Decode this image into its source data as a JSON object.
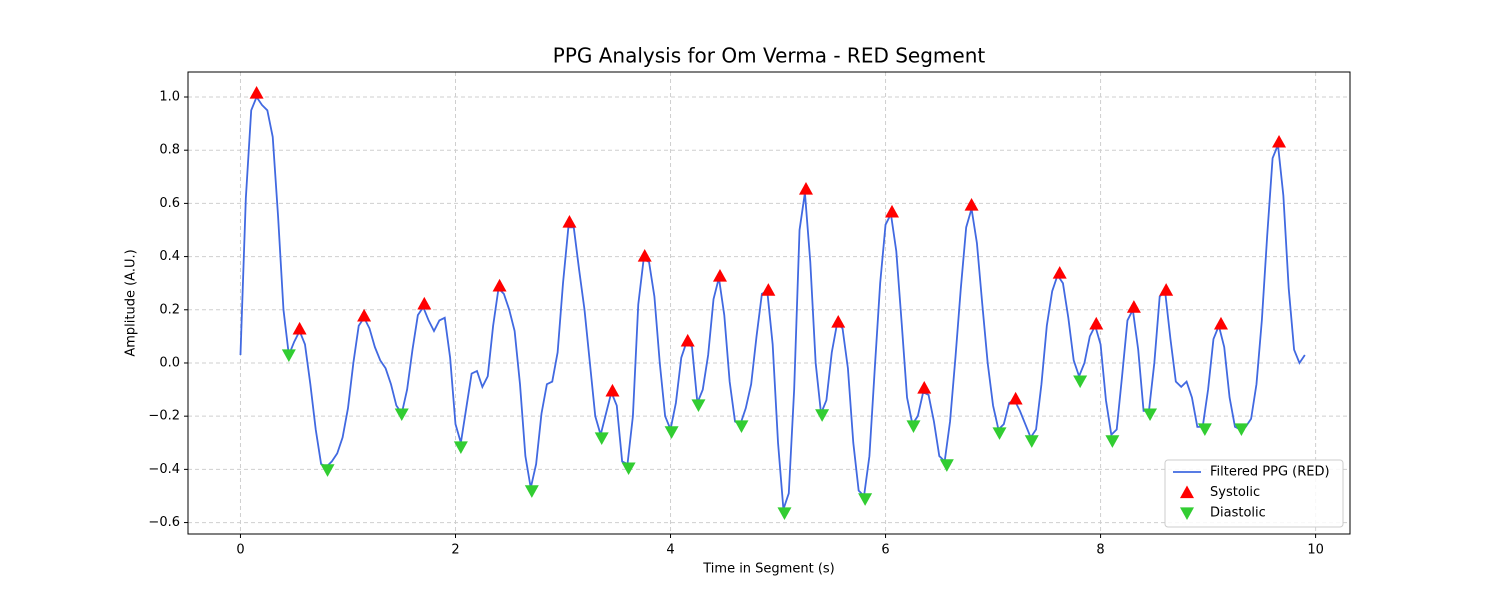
{
  "chart_data": {
    "type": "line",
    "title": "PPG Analysis for Om Verma - RED Segment",
    "xlabel": "Time in Segment (s)",
    "ylabel": "Amplitude (A.U.)",
    "xlim": [
      -0.488,
      10.32
    ],
    "ylim": [
      -0.643,
      1.094
    ],
    "xticks": [
      0,
      2,
      4,
      6,
      8,
      10
    ],
    "yticks": [
      {
        "value": -0.6,
        "label": "−0.6"
      },
      {
        "value": -0.4,
        "label": "−0.4"
      },
      {
        "value": -0.2,
        "label": "−0.2"
      },
      {
        "value": 0,
        "label": "0.0"
      },
      0.2,
      0.4,
      0.6,
      0.8,
      {
        "value": 1,
        "label": "1.0"
      }
    ],
    "grid": true,
    "legend": "lower right",
    "series": [
      {
        "name": "Filtered PPG (RED)",
        "type": "line",
        "color": "#4169e1",
        "x": [
          0,
          0.05,
          0.1,
          0.15,
          0.2,
          0.25,
          0.3,
          0.35,
          0.4,
          0.45,
          0.5,
          0.55,
          0.6,
          0.65,
          0.7,
          0.75,
          0.8,
          0.85,
          0.9,
          0.95,
          1.0,
          1.05,
          1.1,
          1.15,
          1.2,
          1.25,
          1.3,
          1.35,
          1.4,
          1.45,
          1.5,
          1.55,
          1.6,
          1.65,
          1.7,
          1.75,
          1.8,
          1.85,
          1.9,
          1.95,
          2.0,
          2.05,
          2.1,
          2.15,
          2.2,
          2.25,
          2.3,
          2.35,
          2.4,
          2.45,
          2.5,
          2.55,
          2.6,
          2.65,
          2.7,
          2.75,
          2.8,
          2.85,
          2.9,
          2.95,
          3.0,
          3.05,
          3.1,
          3.15,
          3.2,
          3.25,
          3.3,
          3.35,
          3.4,
          3.45,
          3.5,
          3.55,
          3.6,
          3.65,
          3.7,
          3.75,
          3.8,
          3.85,
          3.9,
          3.95,
          4.0,
          4.05,
          4.1,
          4.15,
          4.2,
          4.25,
          4.3,
          4.35,
          4.4,
          4.45,
          4.5,
          4.55,
          4.6,
          4.65,
          4.7,
          4.75,
          4.8,
          4.85,
          4.9,
          4.95,
          5.0,
          5.05,
          5.1,
          5.15,
          5.2,
          5.25,
          5.3,
          5.35,
          5.4,
          5.45,
          5.5,
          5.55,
          5.6,
          5.65,
          5.7,
          5.75,
          5.8,
          5.85,
          5.9,
          5.95,
          6.0,
          6.05,
          6.1,
          6.15,
          6.2,
          6.25,
          6.3,
          6.35,
          6.4,
          6.45,
          6.5,
          6.55,
          6.6,
          6.65,
          6.7,
          6.75,
          6.8,
          6.85,
          6.9,
          6.95,
          7.0,
          7.05,
          7.1,
          7.15,
          7.2,
          7.25,
          7.3,
          7.35,
          7.4,
          7.45,
          7.5,
          7.55,
          7.6,
          7.65,
          7.7,
          7.75,
          7.8,
          7.85,
          7.9,
          7.95,
          8.0,
          8.05,
          8.1,
          8.15,
          8.2,
          8.25,
          8.3,
          8.35,
          8.4,
          8.45,
          8.5,
          8.55,
          8.6,
          8.65,
          8.7,
          8.75,
          8.8,
          8.85,
          8.9,
          8.95,
          9.0,
          9.05,
          9.1,
          9.15,
          9.2,
          9.25,
          9.3,
          9.35,
          9.4,
          9.45,
          9.5,
          9.55,
          9.6,
          9.65,
          9.7,
          9.75,
          9.8,
          9.85,
          9.9
        ],
        "values": [
          0.03,
          0.62,
          0.95,
          1.0,
          0.97,
          0.95,
          0.85,
          0.55,
          0.2,
          0.03,
          0.08,
          0.12,
          0.07,
          -0.08,
          -0.25,
          -0.38,
          -0.39,
          -0.37,
          -0.34,
          -0.28,
          -0.17,
          0.0,
          0.14,
          0.17,
          0.13,
          0.06,
          0.01,
          -0.02,
          -0.08,
          -0.16,
          -0.19,
          -0.1,
          0.05,
          0.18,
          0.21,
          0.16,
          0.12,
          0.16,
          0.17,
          0.02,
          -0.23,
          -0.3,
          -0.17,
          -0.04,
          -0.03,
          -0.09,
          -0.05,
          0.14,
          0.28,
          0.26,
          0.2,
          0.12,
          -0.08,
          -0.35,
          -0.47,
          -0.38,
          -0.19,
          -0.08,
          -0.07,
          0.04,
          0.3,
          0.51,
          0.51,
          0.35,
          0.2,
          0.0,
          -0.2,
          -0.27,
          -0.19,
          -0.11,
          -0.16,
          -0.37,
          -0.38,
          -0.2,
          0.22,
          0.39,
          0.38,
          0.25,
          0.0,
          -0.2,
          -0.25,
          -0.15,
          0.02,
          0.08,
          0.06,
          -0.15,
          -0.1,
          0.03,
          0.24,
          0.32,
          0.18,
          -0.07,
          -0.22,
          -0.23,
          -0.17,
          -0.08,
          0.1,
          0.26,
          0.27,
          0.07,
          -0.3,
          -0.55,
          -0.49,
          -0.1,
          0.5,
          0.64,
          0.38,
          0.0,
          -0.19,
          -0.14,
          0.04,
          0.15,
          0.13,
          -0.02,
          -0.3,
          -0.48,
          -0.5,
          -0.35,
          -0.02,
          0.3,
          0.52,
          0.56,
          0.42,
          0.15,
          -0.13,
          -0.23,
          -0.2,
          -0.11,
          -0.12,
          -0.22,
          -0.35,
          -0.37,
          -0.22,
          0.02,
          0.28,
          0.51,
          0.58,
          0.45,
          0.22,
          0.0,
          -0.16,
          -0.25,
          -0.23,
          -0.15,
          -0.14,
          -0.18,
          -0.23,
          -0.28,
          -0.25,
          -0.08,
          0.14,
          0.27,
          0.33,
          0.3,
          0.17,
          0.01,
          -0.05,
          0.0,
          0.1,
          0.14,
          0.07,
          -0.14,
          -0.27,
          -0.25,
          -0.05,
          0.16,
          0.2,
          0.05,
          -0.18,
          -0.18,
          0.0,
          0.25,
          0.27,
          0.09,
          -0.07,
          -0.09,
          -0.07,
          -0.13,
          -0.24,
          -0.24,
          -0.1,
          0.09,
          0.14,
          0.06,
          -0.13,
          -0.24,
          -0.25,
          -0.24,
          -0.21,
          -0.08,
          0.16,
          0.48,
          0.77,
          0.82,
          0.63,
          0.28,
          0.05,
          0.0,
          0.03
        ]
      },
      {
        "name": "Systolic",
        "type": "scatter",
        "marker": "up",
        "color": "#ff0000",
        "x": [
          0.15,
          0.55,
          1.15,
          1.71,
          2.41,
          3.06,
          3.46,
          3.76,
          4.16,
          4.46,
          4.91,
          5.26,
          5.56,
          6.06,
          6.36,
          6.8,
          7.21,
          7.62,
          7.96,
          8.31,
          8.61,
          9.12,
          9.66
        ],
        "values": [
          1.015,
          0.128,
          0.177,
          0.222,
          0.29,
          0.53,
          -0.105,
          0.402,
          0.083,
          0.327,
          0.274,
          0.654,
          0.154,
          0.568,
          -0.094,
          0.594,
          -0.135,
          0.338,
          0.147,
          0.21,
          0.274,
          0.147,
          0.831
        ]
      },
      {
        "name": "Diastolic",
        "type": "scatter",
        "marker": "down",
        "color": "#32cd32",
        "x": [
          0.45,
          0.81,
          1.5,
          2.05,
          2.71,
          3.36,
          3.61,
          4.01,
          4.26,
          4.66,
          5.06,
          5.41,
          5.81,
          6.26,
          6.57,
          7.06,
          7.36,
          7.81,
          8.11,
          8.46,
          8.97,
          9.31
        ],
        "values": [
          0.03,
          -0.402,
          -0.192,
          -0.316,
          -0.481,
          -0.282,
          -0.395,
          -0.259,
          -0.158,
          -0.237,
          -0.564,
          -0.195,
          -0.511,
          -0.237,
          -0.383,
          -0.263,
          -0.293,
          -0.068,
          -0.293,
          -0.192,
          -0.248,
          -0.248
        ]
      }
    ]
  }
}
